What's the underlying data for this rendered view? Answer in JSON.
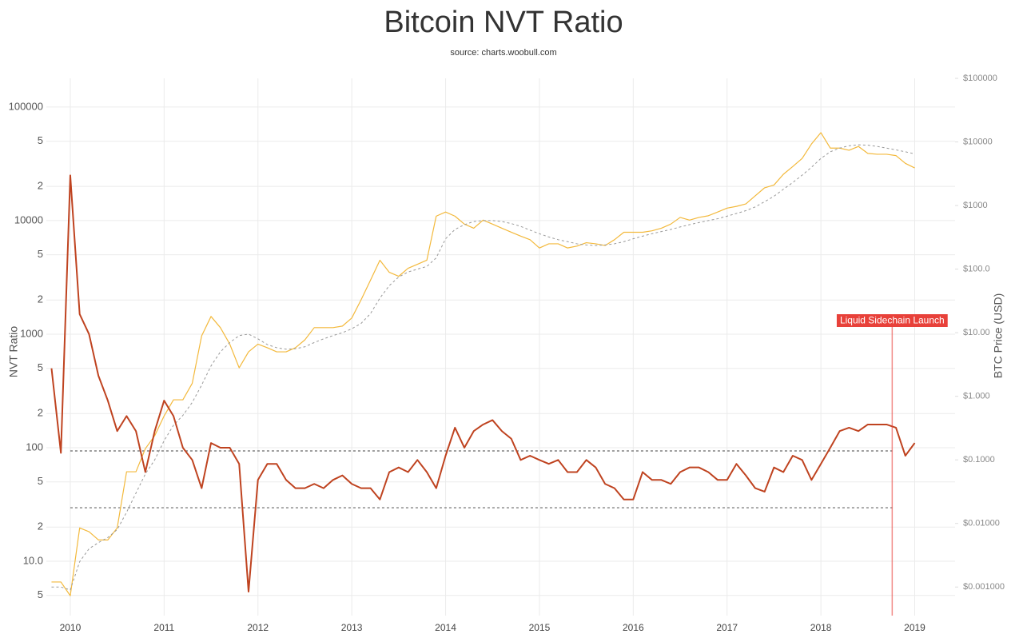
{
  "chart_data": {
    "type": "line",
    "title": "Bitcoin NVT Ratio",
    "subtitle": "source: charts.woobull.com",
    "y_label": "NVT Ratio",
    "y2_label": "BTC Price (USD)",
    "log_y": true,
    "log_y2": true,
    "grid": true,
    "xlim": [
      2009.745,
      2019.43
    ],
    "xticks": [
      2010,
      2011,
      2012,
      2013,
      2014,
      2015,
      2016,
      2017,
      2018,
      2019
    ],
    "ylim": [
      3.32,
      179000
    ],
    "yticks": [
      100000,
      {
        "value": 50000,
        "label": "5"
      },
      {
        "value": 20000,
        "label": "2"
      },
      10000,
      {
        "value": 5000,
        "label": "5"
      },
      {
        "value": 2000,
        "label": "2"
      },
      1000,
      {
        "value": 500,
        "label": "5"
      },
      {
        "value": 200,
        "label": "2"
      },
      100,
      {
        "value": 50,
        "label": "5"
      },
      {
        "value": 20,
        "label": "2"
      },
      {
        "value": 10,
        "label": "10.0"
      },
      {
        "value": 5,
        "label": "5"
      }
    ],
    "y2lim": [
      0.000355,
      100000
    ],
    "y2ticks": [
      {
        "value": 100000,
        "label": "$100000"
      },
      {
        "value": 10000,
        "label": "$10000"
      },
      {
        "value": 1000,
        "label": "$1000"
      },
      {
        "value": 100,
        "label": "$100.0"
      },
      {
        "value": 10,
        "label": "$10.00"
      },
      {
        "value": 1,
        "label": "$1.000"
      },
      {
        "value": 0.1,
        "label": "$0.1000"
      },
      {
        "value": 0.01,
        "label": "$0.01000"
      },
      {
        "value": 0.001,
        "label": "$0.001000"
      }
    ],
    "x": [
      2009.8,
      2009.9,
      2010.0,
      2010.1,
      2010.2,
      2010.3,
      2010.4,
      2010.5,
      2010.6,
      2010.7,
      2010.8,
      2010.9,
      2011.0,
      2011.1,
      2011.2,
      2011.3,
      2011.4,
      2011.5,
      2011.6,
      2011.7,
      2011.8,
      2011.9,
      2012.0,
      2012.1,
      2012.2,
      2012.3,
      2012.4,
      2012.5,
      2012.6,
      2012.7,
      2012.8,
      2012.9,
      2013.0,
      2013.1,
      2013.2,
      2013.3,
      2013.4,
      2013.5,
      2013.6,
      2013.7,
      2013.8,
      2013.9,
      2014.0,
      2014.1,
      2014.2,
      2014.3,
      2014.4,
      2014.5,
      2014.6,
      2014.7,
      2014.8,
      2014.9,
      2015.0,
      2015.1,
      2015.2,
      2015.3,
      2015.4,
      2015.5,
      2015.6,
      2015.7,
      2015.8,
      2015.9,
      2016.0,
      2016.1,
      2016.2,
      2016.3,
      2016.4,
      2016.5,
      2016.6,
      2016.7,
      2016.8,
      2016.9,
      2017.0,
      2017.1,
      2017.2,
      2017.3,
      2017.4,
      2017.5,
      2017.6,
      2017.7,
      2017.8,
      2017.9,
      2018.0,
      2018.1,
      2018.2,
      2018.3,
      2018.4,
      2018.5,
      2018.6,
      2018.7,
      2018.8,
      2018.9,
      2019.0
    ],
    "series": [
      {
        "color": "#f3b93c",
        "axis": "y2",
        "line_style": "solid",
        "values": [
          0.0012,
          0.0012,
          0.00073,
          0.0085,
          0.0074,
          0.0055,
          0.0055,
          0.0085,
          0.065,
          0.065,
          0.15,
          0.24,
          0.49,
          0.88,
          0.88,
          1.6,
          8.9,
          18,
          12,
          6.6,
          2.8,
          5,
          6.6,
          5.8,
          5,
          5,
          5.8,
          7.7,
          12,
          12,
          12,
          12.7,
          17,
          33,
          67,
          138,
          89,
          77,
          103,
          119,
          138,
          680,
          790,
          680,
          510,
          440,
          590,
          510,
          440,
          380,
          330,
          290,
          215,
          250,
          250,
          215,
          230,
          260,
          250,
          235,
          290,
          380,
          380,
          380,
          400,
          440,
          510,
          650,
          590,
          650,
          690,
          790,
          910,
          970,
          1060,
          1420,
          1900,
          2100,
          3100,
          4100,
          5500,
          9300,
          14000,
          8000,
          8000,
          7400,
          8500,
          6600,
          6400,
          6400,
          6100,
          4600,
          3900
        ]
      },
      {
        "color": "#999999",
        "axis": "y2",
        "line_style": "dashed",
        "values": [
          0.001,
          0.001,
          0.0009,
          0.0025,
          0.004,
          0.005,
          0.006,
          0.008,
          0.015,
          0.03,
          0.06,
          0.1,
          0.2,
          0.35,
          0.5,
          0.8,
          1.5,
          3,
          5,
          7,
          9,
          9.5,
          8,
          6.5,
          5.8,
          5.5,
          5.6,
          6,
          7,
          8,
          9,
          10,
          11.5,
          14,
          20,
          35,
          55,
          75,
          90,
          100,
          110,
          150,
          300,
          420,
          500,
          560,
          580,
          580,
          560,
          520,
          470,
          410,
          360,
          320,
          290,
          270,
          250,
          240,
          235,
          240,
          250,
          270,
          300,
          330,
          360,
          390,
          420,
          460,
          500,
          540,
          580,
          620,
          680,
          750,
          830,
          950,
          1150,
          1400,
          1800,
          2300,
          3000,
          4000,
          5500,
          7000,
          8000,
          8700,
          9000,
          8900,
          8500,
          8000,
          7500,
          7000,
          6500
        ]
      },
      {
        "color": "#bf4320",
        "axis": "y",
        "line_style": "solid",
        "values": [
          500,
          90,
          25000,
          1500,
          1000,
          430,
          260,
          140,
          190,
          140,
          61,
          140,
          260,
          190,
          100,
          78,
          44,
          110,
          100,
          100,
          72,
          5.4,
          52,
          72,
          72,
          52,
          44,
          44,
          48,
          44,
          52,
          57,
          48,
          44,
          44,
          35,
          61,
          67,
          61,
          78,
          61,
          44,
          85,
          150,
          100,
          140,
          160,
          175,
          140,
          120,
          78,
          85,
          78,
          72,
          78,
          61,
          61,
          78,
          67,
          48,
          44,
          35,
          35,
          61,
          52,
          52,
          48,
          61,
          67,
          67,
          61,
          52,
          52,
          72,
          57,
          44,
          41,
          67,
          61,
          85,
          78,
          52,
          72,
          100,
          140,
          150,
          140,
          160,
          160,
          160,
          150,
          85,
          110
        ]
      }
    ],
    "reference_lines": [
      {
        "value": 93.7,
        "x": [
          2010,
          2018.76
        ]
      },
      {
        "value": 29.6,
        "x": [
          2010,
          2018.76
        ]
      }
    ],
    "annotation": {
      "text": "Liquid Sidechain Launch",
      "x": 2018.76,
      "color": "#e8413a"
    }
  }
}
